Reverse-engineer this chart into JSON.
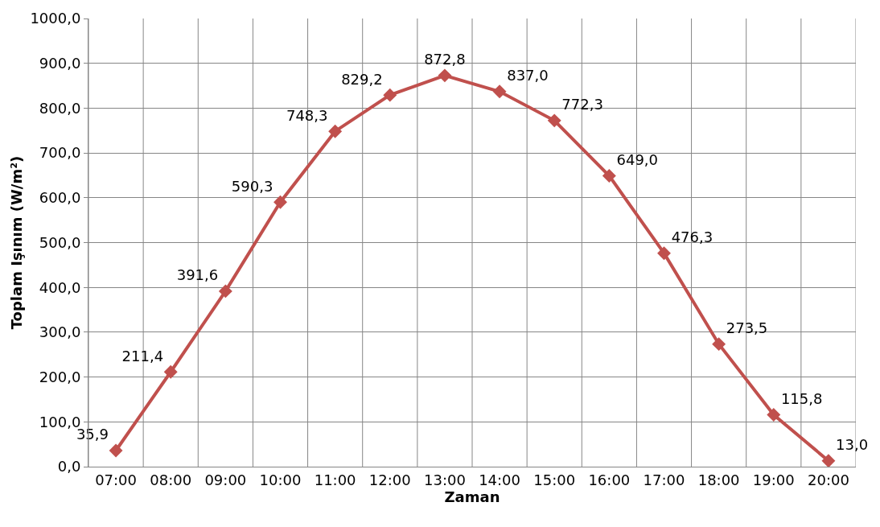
{
  "chart_data": {
    "type": "line",
    "xlabel": "Zaman",
    "ylabel": "Toplam Işınım (W/m²)",
    "categories": [
      "07:00",
      "08:00",
      "09:00",
      "10:00",
      "11:00",
      "12:00",
      "13:00",
      "14:00",
      "15:00",
      "16:00",
      "17:00",
      "18:00",
      "19:00",
      "20:00"
    ],
    "series": [
      {
        "color": "#c0504d",
        "values": [
          35.9,
          211.4,
          391.6,
          590.3,
          748.3,
          829.2,
          872.8,
          837.0,
          772.3,
          649.0,
          476.3,
          273.5,
          115.8,
          13.0
        ],
        "value_labels": [
          "35,9",
          "211,4",
          "391,6",
          "590,3",
          "748,3",
          "829,2",
          "872,8",
          "837,0",
          "772,3",
          "649,0",
          "476,3",
          "273,5",
          "115,8",
          "13,0"
        ]
      }
    ],
    "ylim": [
      0,
      1000
    ],
    "yticks": [
      {
        "value": 0,
        "label": "0,0"
      },
      {
        "value": 100,
        "label": "100,0"
      },
      {
        "value": 200,
        "label": "200,0"
      },
      {
        "value": 300,
        "label": "300,0"
      },
      {
        "value": 400,
        "label": "400,0"
      },
      {
        "value": 500,
        "label": "500,0"
      },
      {
        "value": 600,
        "label": "600,0"
      },
      {
        "value": 700,
        "label": "700,0"
      },
      {
        "value": 800,
        "label": "800,0"
      },
      {
        "value": 900,
        "label": "900,0"
      },
      {
        "value": 1000,
        "label": "1000,0"
      }
    ],
    "grid": true,
    "legend": false,
    "marker": "diamond",
    "line_style": "solid"
  }
}
